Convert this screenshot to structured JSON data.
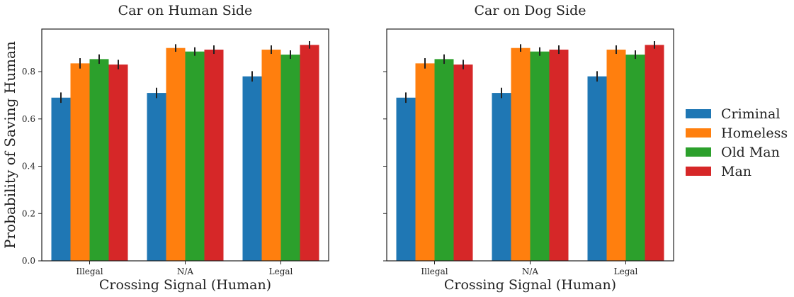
{
  "chart_data": [
    {
      "type": "bar",
      "title": "Car on Human Side",
      "xlabel": "Crossing Signal (Human)",
      "ylabel": "Probability of Saving Human",
      "categories": [
        "Illegal",
        "N/A",
        "Legal"
      ],
      "ylim": [
        0,
        0.98
      ],
      "yticks": [
        "0.0",
        "0.2",
        "0.4",
        "0.6",
        "0.8"
      ],
      "series": [
        {
          "name": "Criminal",
          "color": "#1f77b4",
          "values": [
            0.69,
            0.71,
            0.78
          ],
          "errors": [
            0.022,
            0.022,
            0.022
          ]
        },
        {
          "name": "Homeless",
          "color": "#ff7f0e",
          "values": [
            0.835,
            0.9,
            0.893
          ],
          "errors": [
            0.022,
            0.016,
            0.018
          ]
        },
        {
          "name": "Old Man",
          "color": "#2ca02c",
          "values": [
            0.853,
            0.885,
            0.872
          ],
          "errors": [
            0.02,
            0.018,
            0.018
          ]
        },
        {
          "name": "Man",
          "color": "#d62728",
          "values": [
            0.83,
            0.893,
            0.913
          ],
          "errors": [
            0.02,
            0.018,
            0.016
          ]
        }
      ]
    },
    {
      "type": "bar",
      "title": "Car on Dog Side",
      "xlabel": "Crossing Signal (Human)",
      "ylabel": "",
      "categories": [
        "Illegal",
        "N/A",
        "Legal"
      ],
      "ylim": [
        0,
        0.98
      ],
      "yticks": [
        "0.0",
        "0.2",
        "0.4",
        "0.6",
        "0.8"
      ],
      "series": [
        {
          "name": "Criminal",
          "color": "#1f77b4",
          "values": [
            0.69,
            0.71,
            0.78
          ],
          "errors": [
            0.022,
            0.022,
            0.022
          ]
        },
        {
          "name": "Homeless",
          "color": "#ff7f0e",
          "values": [
            0.835,
            0.9,
            0.893
          ],
          "errors": [
            0.022,
            0.016,
            0.018
          ]
        },
        {
          "name": "Old Man",
          "color": "#2ca02c",
          "values": [
            0.853,
            0.885,
            0.872
          ],
          "errors": [
            0.02,
            0.018,
            0.018
          ]
        },
        {
          "name": "Man",
          "color": "#d62728",
          "values": [
            0.83,
            0.893,
            0.913
          ],
          "errors": [
            0.02,
            0.018,
            0.016
          ]
        }
      ]
    }
  ],
  "legend": {
    "placement": "right",
    "entries": [
      {
        "label": "Criminal",
        "color": "#1f77b4"
      },
      {
        "label": "Homeless",
        "color": "#ff7f0e"
      },
      {
        "label": "Old Man",
        "color": "#2ca02c"
      },
      {
        "label": "Man",
        "color": "#d62728"
      }
    ]
  }
}
